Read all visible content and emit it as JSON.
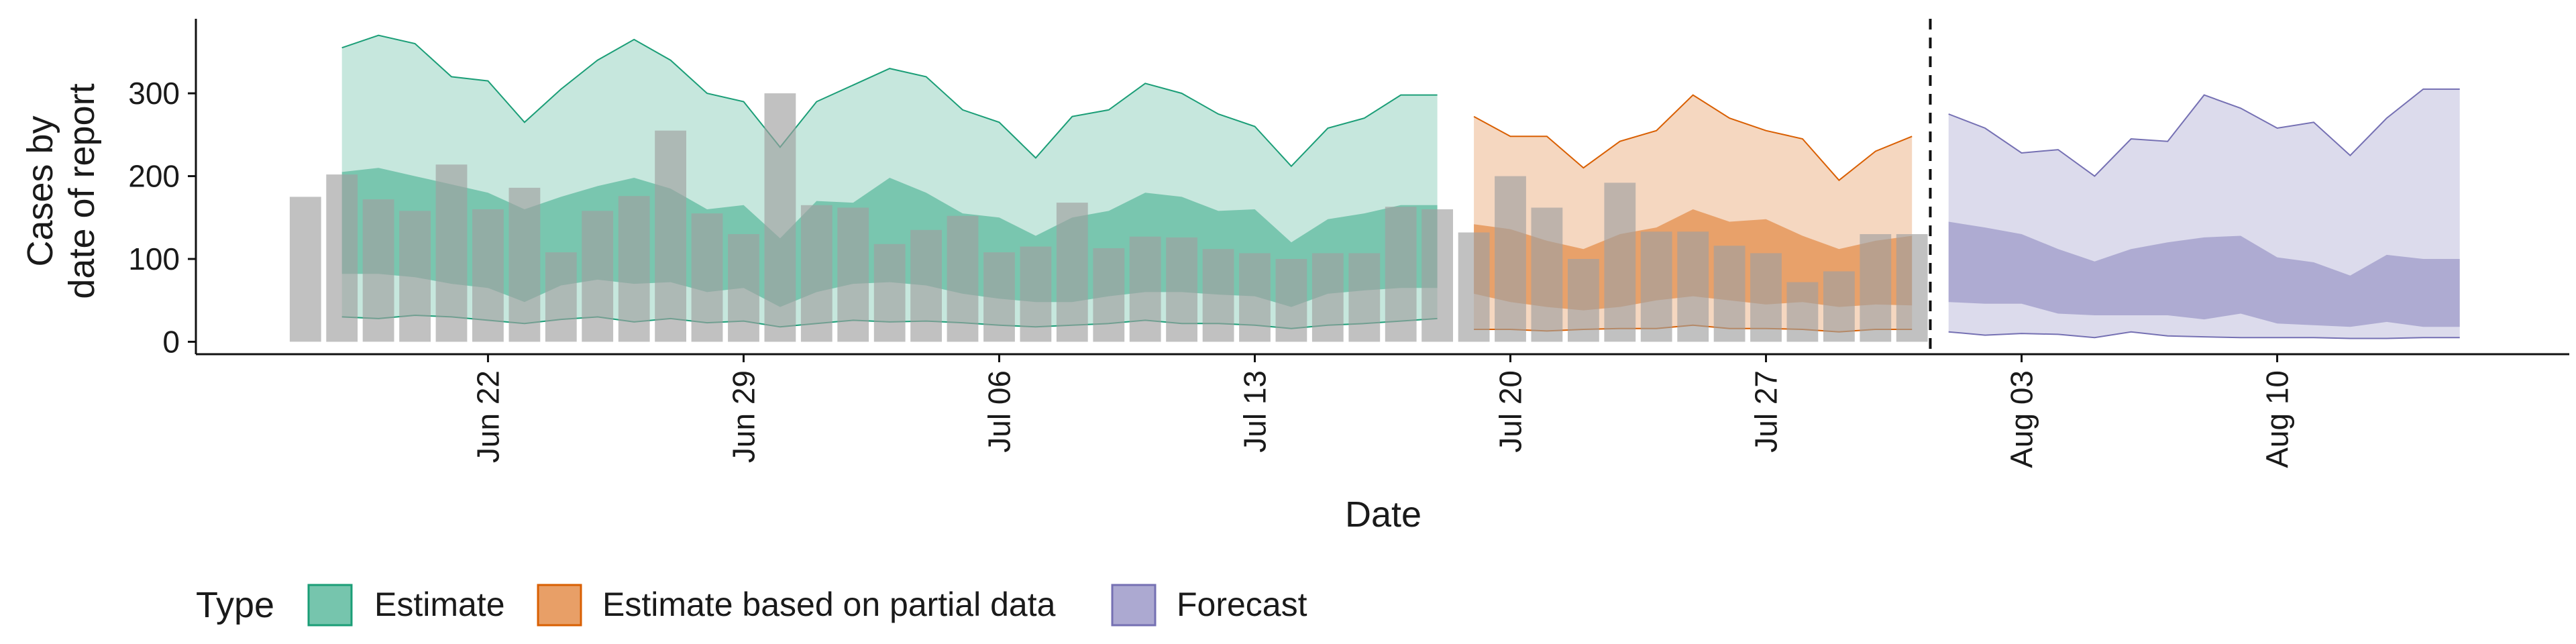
{
  "chart_data": {
    "type": "area",
    "xlabel": "Date",
    "ylabel_lines": [
      "Cases by",
      "date of report"
    ],
    "ylim": [
      -15,
      390
    ],
    "xlim": [
      "2024-06-14",
      "2024-08-18"
    ],
    "y_ticks": [
      0,
      100,
      200,
      300
    ],
    "x_ticks": [
      {
        "date": "2024-06-22",
        "label": "Jun 22"
      },
      {
        "date": "2024-06-29",
        "label": "Jun 29"
      },
      {
        "date": "2024-07-06",
        "label": "Jul 06"
      },
      {
        "date": "2024-07-13",
        "label": "Jul 13"
      },
      {
        "date": "2024-07-20",
        "label": "Jul 20"
      },
      {
        "date": "2024-07-27",
        "label": "Jul 27"
      },
      {
        "date": "2024-08-03",
        "label": "Aug 03"
      },
      {
        "date": "2024-08-10",
        "label": "Aug 10"
      }
    ],
    "forecast_divider_date": "2024-07-31",
    "observed_cases": {
      "dates": [
        "2024-06-17",
        "2024-06-18",
        "2024-06-19",
        "2024-06-20",
        "2024-06-21",
        "2024-06-22",
        "2024-06-23",
        "2024-06-24",
        "2024-06-25",
        "2024-06-26",
        "2024-06-27",
        "2024-06-28",
        "2024-06-29",
        "2024-06-30",
        "2024-07-01",
        "2024-07-02",
        "2024-07-03",
        "2024-07-04",
        "2024-07-05",
        "2024-07-06",
        "2024-07-07",
        "2024-07-08",
        "2024-07-09",
        "2024-07-10",
        "2024-07-11",
        "2024-07-12",
        "2024-07-13",
        "2024-07-14",
        "2024-07-15",
        "2024-07-16",
        "2024-07-17",
        "2024-07-18",
        "2024-07-19",
        "2024-07-20",
        "2024-07-21",
        "2024-07-22",
        "2024-07-23",
        "2024-07-24",
        "2024-07-25",
        "2024-07-26",
        "2024-07-27",
        "2024-07-28",
        "2024-07-29",
        "2024-07-30",
        "2024-07-31"
      ],
      "values": [
        175,
        202,
        172,
        158,
        214,
        160,
        186,
        108,
        158,
        176,
        255,
        155,
        130,
        300,
        165,
        162,
        118,
        135,
        152,
        108,
        115,
        168,
        113,
        127,
        126,
        112,
        107,
        100,
        107,
        107,
        163,
        160,
        132,
        200,
        162,
        100,
        192,
        133,
        133,
        116,
        107,
        72,
        85,
        130,
        130
      ]
    },
    "series": [
      {
        "name": "Estimate",
        "color": "#1b9e77",
        "dates": [
          "2024-06-18",
          "2024-06-19",
          "2024-06-20",
          "2024-06-21",
          "2024-06-22",
          "2024-06-23",
          "2024-06-24",
          "2024-06-25",
          "2024-06-26",
          "2024-06-27",
          "2024-06-28",
          "2024-06-29",
          "2024-06-30",
          "2024-07-01",
          "2024-07-02",
          "2024-07-03",
          "2024-07-04",
          "2024-07-05",
          "2024-07-06",
          "2024-07-07",
          "2024-07-08",
          "2024-07-09",
          "2024-07-10",
          "2024-07-11",
          "2024-07-12",
          "2024-07-13",
          "2024-07-14",
          "2024-07-15",
          "2024-07-16",
          "2024-07-17",
          "2024-07-18"
        ],
        "outer_upper": [
          355,
          370,
          360,
          320,
          315,
          265,
          305,
          340,
          365,
          340,
          300,
          290,
          235,
          290,
          310,
          330,
          320,
          280,
          265,
          222,
          272,
          280,
          312,
          300,
          275,
          260,
          212,
          258,
          270,
          298,
          298
        ],
        "outer_lower": [
          30,
          28,
          32,
          30,
          26,
          22,
          27,
          30,
          24,
          28,
          23,
          25,
          18,
          22,
          26,
          24,
          25,
          23,
          20,
          18,
          20,
          22,
          26,
          22,
          22,
          20,
          16,
          20,
          22,
          25,
          28
        ],
        "inner_upper": [
          205,
          210,
          200,
          190,
          180,
          160,
          175,
          188,
          198,
          185,
          160,
          165,
          125,
          170,
          168,
          198,
          180,
          155,
          150,
          128,
          150,
          158,
          180,
          175,
          158,
          160,
          120,
          148,
          155,
          165,
          165
        ],
        "inner_lower": [
          82,
          82,
          78,
          70,
          65,
          48,
          68,
          75,
          70,
          72,
          60,
          65,
          42,
          60,
          70,
          72,
          68,
          58,
          52,
          48,
          48,
          55,
          60,
          60,
          57,
          55,
          42,
          58,
          62,
          65,
          65
        ]
      },
      {
        "name": "Estimate based on partial data",
        "color": "#d95f02",
        "dates": [
          "2024-07-19",
          "2024-07-20",
          "2024-07-21",
          "2024-07-22",
          "2024-07-23",
          "2024-07-24",
          "2024-07-25",
          "2024-07-26",
          "2024-07-27",
          "2024-07-28",
          "2024-07-29",
          "2024-07-30",
          "2024-07-31"
        ],
        "outer_upper": [
          272,
          248,
          248,
          210,
          242,
          255,
          298,
          270,
          255,
          245,
          195,
          230,
          248
        ],
        "outer_lower": [
          15,
          15,
          13,
          15,
          16,
          16,
          20,
          16,
          16,
          15,
          12,
          15,
          15
        ],
        "inner_upper": [
          142,
          136,
          122,
          112,
          130,
          138,
          160,
          145,
          148,
          128,
          112,
          122,
          128
        ],
        "inner_lower": [
          58,
          48,
          42,
          38,
          42,
          50,
          55,
          50,
          45,
          48,
          42,
          45,
          44
        ]
      },
      {
        "name": "Forecast",
        "color": "#7570b3",
        "dates": [
          "2024-08-01",
          "2024-08-02",
          "2024-08-03",
          "2024-08-04",
          "2024-08-05",
          "2024-08-06",
          "2024-08-07",
          "2024-08-08",
          "2024-08-09",
          "2024-08-10",
          "2024-08-11",
          "2024-08-12",
          "2024-08-13",
          "2024-08-14",
          "2024-08-15"
        ],
        "outer_upper": [
          275,
          258,
          228,
          232,
          200,
          245,
          242,
          298,
          282,
          258,
          265,
          225,
          270,
          305,
          305
        ],
        "outer_lower": [
          12,
          8,
          10,
          9,
          5,
          12,
          7,
          6,
          5,
          5,
          5,
          4,
          4,
          5,
          5
        ],
        "inner_upper": [
          145,
          138,
          130,
          112,
          97,
          112,
          120,
          126,
          128,
          102,
          96,
          80,
          105,
          100,
          100
        ],
        "inner_lower": [
          48,
          46,
          46,
          34,
          32,
          32,
          32,
          27,
          34,
          22,
          20,
          18,
          24,
          18,
          18
        ]
      }
    ],
    "legend": {
      "title": "Type",
      "position": "bottom",
      "items": [
        {
          "label": "Estimate",
          "color": "#1b9e77"
        },
        {
          "label": "Estimate based on partial data",
          "color": "#d95f02"
        },
        {
          "label": "Forecast",
          "color": "#7570b3"
        }
      ]
    }
  }
}
